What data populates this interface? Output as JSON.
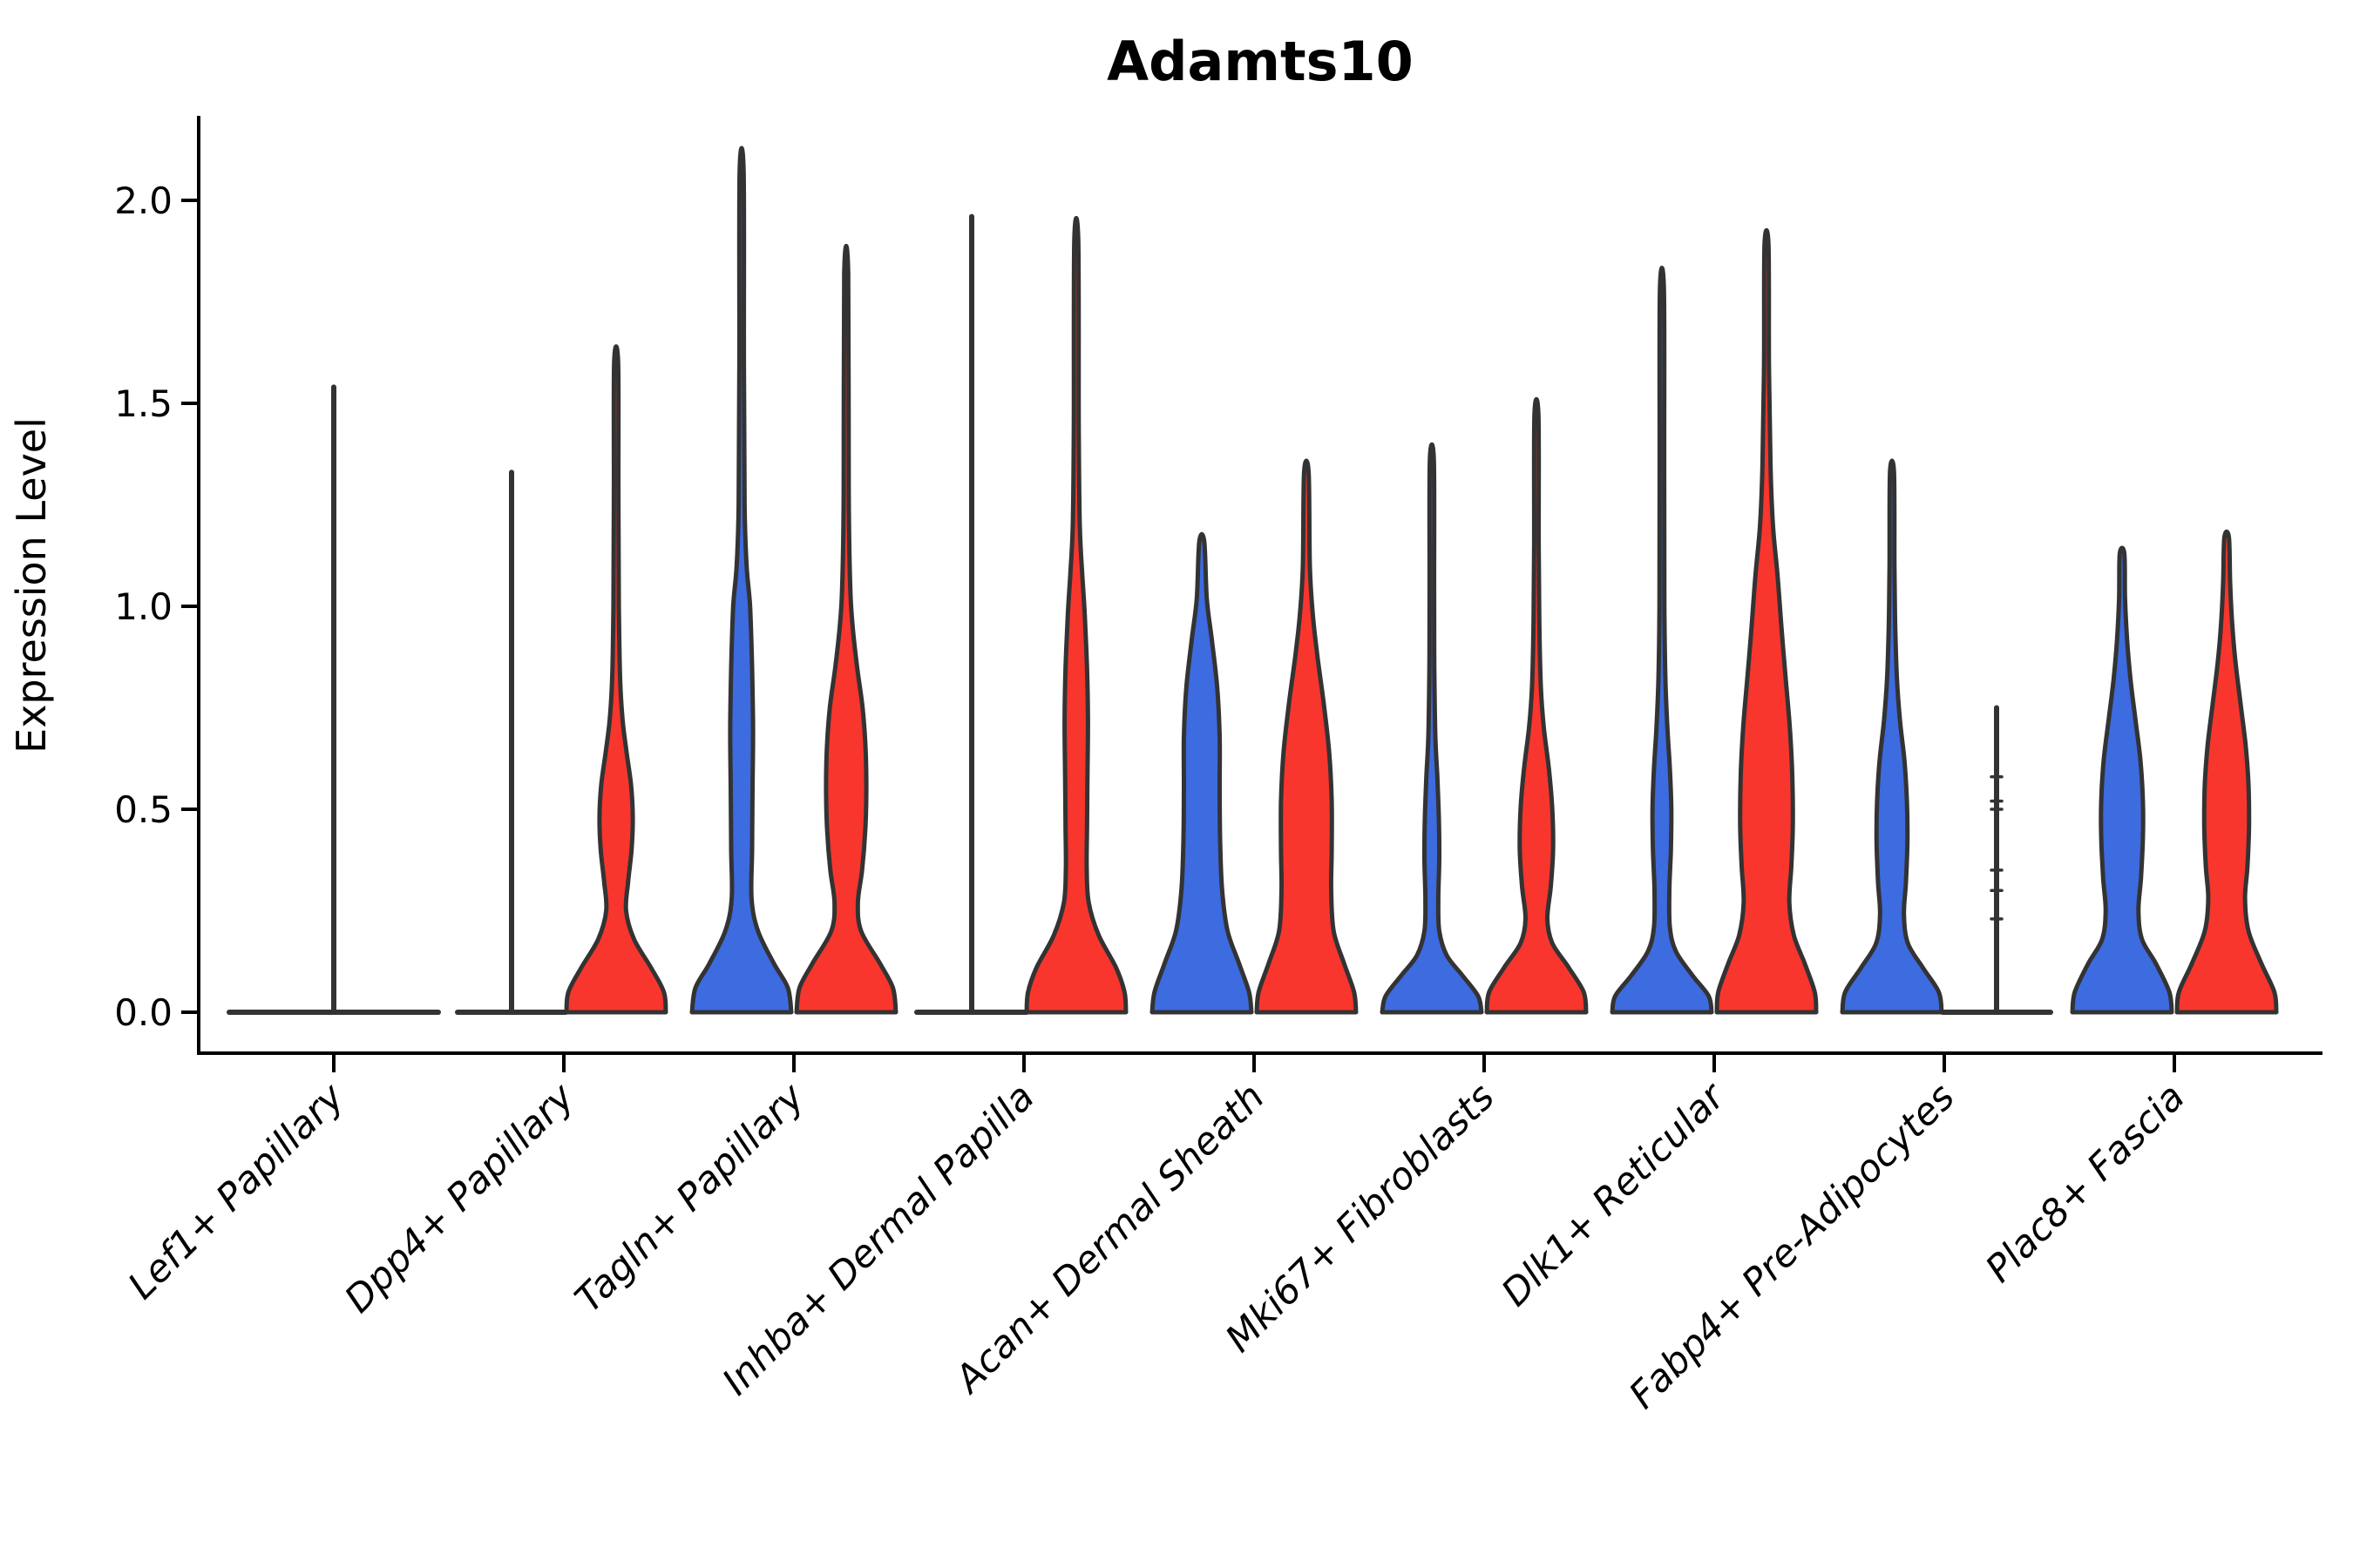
{
  "page": {
    "background": "#FFFFFF"
  },
  "title": "Adamts10",
  "chart_data": {
    "type": "violin",
    "title": "Adamts10",
    "xlabel": "",
    "ylabel": "Expression Level",
    "ylim": [
      -0.105,
      2.2
    ],
    "yticks": [
      0.0,
      0.5,
      1.0,
      1.5,
      2.0
    ],
    "ytick_labels": [
      "0.0",
      "0.5",
      "1.0",
      "1.5",
      "2.0"
    ],
    "grid": false,
    "legend": "none",
    "categories": [
      "Lef1+ Papillary",
      "Dpp4+ Papillary",
      "Tagln+ Papillary",
      "Inhba+ Dermal Papilla",
      "Acan+ Dermal Sheath",
      "Mki67+ Fibroblasts",
      "Dlk1+ Reticular",
      "Fabp4+ Pre-Adipocytes",
      "Plac8+ Fascia"
    ],
    "groups": [
      {
        "key": "blue",
        "fill": "#3D6BE0"
      },
      {
        "key": "red",
        "fill": "#F8362D"
      }
    ],
    "edge_color": "#333333",
    "axis_color": "#000000",
    "violins": [
      {
        "category_index": 0,
        "category": "Lef1+ Papillary",
        "group": null,
        "side": "center",
        "kind": "flat_spike",
        "flat_half": 120,
        "spike_top": 1.54,
        "points": []
      },
      {
        "category_index": 1,
        "category": "Dpp4+ Papillary",
        "group": "blue",
        "side": "left",
        "kind": "flat_spike",
        "flat_half": 62,
        "spike_top": 1.33,
        "points": []
      },
      {
        "category_index": 1,
        "category": "Dpp4+ Papillary",
        "group": "red",
        "side": "right",
        "kind": "kde",
        "max": 1.6,
        "profile": [
          [
            0,
            1.0
          ],
          [
            0.05,
            0.96
          ],
          [
            0.11,
            0.7
          ],
          [
            0.18,
            0.36
          ],
          [
            0.25,
            0.2
          ],
          [
            0.32,
            0.24
          ],
          [
            0.4,
            0.31
          ],
          [
            0.48,
            0.335
          ],
          [
            0.56,
            0.3
          ],
          [
            0.64,
            0.21
          ],
          [
            0.72,
            0.13
          ],
          [
            0.82,
            0.08
          ],
          [
            1.0,
            0.055
          ],
          [
            1.28,
            0.045
          ],
          [
            1.6,
            0.04
          ]
        ]
      },
      {
        "category_index": 2,
        "category": "Tagln+ Papillary",
        "group": "blue",
        "side": "left",
        "kind": "kde",
        "max": 2.07,
        "profile": [
          [
            0,
            1.0
          ],
          [
            0.06,
            0.93
          ],
          [
            0.12,
            0.65
          ],
          [
            0.2,
            0.33
          ],
          [
            0.28,
            0.2
          ],
          [
            0.4,
            0.21
          ],
          [
            0.55,
            0.22
          ],
          [
            0.7,
            0.23
          ],
          [
            0.85,
            0.21
          ],
          [
            1.0,
            0.17
          ],
          [
            1.1,
            0.1
          ],
          [
            1.25,
            0.06
          ],
          [
            1.6,
            0.045
          ],
          [
            2.07,
            0.04
          ]
        ]
      },
      {
        "category_index": 2,
        "category": "Tagln+ Papillary",
        "group": "red",
        "side": "right",
        "kind": "kde",
        "max": 1.82,
        "profile": [
          [
            0,
            1.0
          ],
          [
            0.06,
            0.94
          ],
          [
            0.12,
            0.68
          ],
          [
            0.2,
            0.3
          ],
          [
            0.27,
            0.235
          ],
          [
            0.35,
            0.32
          ],
          [
            0.45,
            0.385
          ],
          [
            0.55,
            0.405
          ],
          [
            0.65,
            0.39
          ],
          [
            0.75,
            0.33
          ],
          [
            0.85,
            0.22
          ],
          [
            0.95,
            0.13
          ],
          [
            1.05,
            0.08
          ],
          [
            1.28,
            0.05
          ],
          [
            1.82,
            0.04
          ]
        ]
      },
      {
        "category_index": 3,
        "category": "Inhba+ Dermal Papilla",
        "group": "blue",
        "side": "left",
        "kind": "flat_spike",
        "flat_half": 63,
        "spike_top": 1.96,
        "points": []
      },
      {
        "category_index": 3,
        "category": "Inhba+ Dermal Papilla",
        "group": "red",
        "side": "right",
        "kind": "kde",
        "max": 1.9,
        "profile": [
          [
            0,
            1.0
          ],
          [
            0.05,
            0.97
          ],
          [
            0.11,
            0.8
          ],
          [
            0.19,
            0.45
          ],
          [
            0.27,
            0.25
          ],
          [
            0.35,
            0.21
          ],
          [
            0.45,
            0.215
          ],
          [
            0.58,
            0.225
          ],
          [
            0.72,
            0.235
          ],
          [
            0.85,
            0.215
          ],
          [
            0.98,
            0.17
          ],
          [
            1.08,
            0.12
          ],
          [
            1.2,
            0.07
          ],
          [
            1.45,
            0.05
          ],
          [
            1.9,
            0.04
          ]
        ]
      },
      {
        "category_index": 4,
        "category": "Acan+ Dermal Sheath",
        "group": "blue",
        "side": "left",
        "kind": "kde",
        "max": 1.16,
        "profile": [
          [
            0,
            1.0
          ],
          [
            0.05,
            0.95
          ],
          [
            0.12,
            0.75
          ],
          [
            0.2,
            0.52
          ],
          [
            0.3,
            0.41
          ],
          [
            0.42,
            0.37
          ],
          [
            0.55,
            0.36
          ],
          [
            0.68,
            0.36
          ],
          [
            0.8,
            0.31
          ],
          [
            0.92,
            0.2
          ],
          [
            1.02,
            0.1
          ],
          [
            1.16,
            0.05
          ]
        ]
      },
      {
        "category_index": 4,
        "category": "Acan+ Dermal Sheath",
        "group": "red",
        "side": "right",
        "kind": "kde",
        "max": 1.33,
        "profile": [
          [
            0,
            1.0
          ],
          [
            0.05,
            0.96
          ],
          [
            0.12,
            0.76
          ],
          [
            0.2,
            0.55
          ],
          [
            0.3,
            0.5
          ],
          [
            0.4,
            0.51
          ],
          [
            0.52,
            0.51
          ],
          [
            0.64,
            0.46
          ],
          [
            0.76,
            0.35
          ],
          [
            0.88,
            0.22
          ],
          [
            0.98,
            0.13
          ],
          [
            1.1,
            0.07
          ],
          [
            1.33,
            0.045
          ]
        ]
      },
      {
        "category_index": 5,
        "category": "Mki67+ Fibroblasts",
        "group": "blue",
        "side": "left",
        "kind": "kde",
        "max": 1.36,
        "profile": [
          [
            0,
            1.0
          ],
          [
            0.04,
            0.93
          ],
          [
            0.09,
            0.62
          ],
          [
            0.14,
            0.3
          ],
          [
            0.2,
            0.15
          ],
          [
            0.28,
            0.13
          ],
          [
            0.38,
            0.15
          ],
          [
            0.48,
            0.14
          ],
          [
            0.58,
            0.11
          ],
          [
            0.68,
            0.07
          ],
          [
            0.85,
            0.05
          ],
          [
            1.05,
            0.045
          ],
          [
            1.36,
            0.04
          ]
        ]
      },
      {
        "category_index": 5,
        "category": "Mki67+ Fibroblasts",
        "group": "red",
        "side": "right",
        "kind": "kde",
        "max": 1.47,
        "profile": [
          [
            0,
            1.0
          ],
          [
            0.05,
            0.95
          ],
          [
            0.11,
            0.65
          ],
          [
            0.17,
            0.32
          ],
          [
            0.23,
            0.22
          ],
          [
            0.31,
            0.29
          ],
          [
            0.4,
            0.335
          ],
          [
            0.5,
            0.32
          ],
          [
            0.6,
            0.25
          ],
          [
            0.7,
            0.15
          ],
          [
            0.8,
            0.09
          ],
          [
            0.95,
            0.06
          ],
          [
            1.15,
            0.045
          ],
          [
            1.47,
            0.04
          ]
        ]
      },
      {
        "category_index": 6,
        "category": "Dlk1+ Reticular",
        "group": "blue",
        "side": "left",
        "kind": "kde",
        "max": 1.78,
        "profile": [
          [
            0,
            1.0
          ],
          [
            0.04,
            0.94
          ],
          [
            0.09,
            0.62
          ],
          [
            0.15,
            0.28
          ],
          [
            0.21,
            0.16
          ],
          [
            0.3,
            0.15
          ],
          [
            0.4,
            0.18
          ],
          [
            0.5,
            0.19
          ],
          [
            0.6,
            0.16
          ],
          [
            0.7,
            0.11
          ],
          [
            0.82,
            0.07
          ],
          [
            1.0,
            0.05
          ],
          [
            1.35,
            0.045
          ],
          [
            1.78,
            0.04
          ]
        ]
      },
      {
        "category_index": 6,
        "category": "Dlk1+ Reticular",
        "group": "red",
        "side": "right",
        "kind": "kde",
        "max": 1.89,
        "profile": [
          [
            0,
            1.0
          ],
          [
            0.05,
            0.97
          ],
          [
            0.12,
            0.77
          ],
          [
            0.19,
            0.55
          ],
          [
            0.27,
            0.46
          ],
          [
            0.36,
            0.5
          ],
          [
            0.46,
            0.53
          ],
          [
            0.58,
            0.52
          ],
          [
            0.7,
            0.47
          ],
          [
            0.83,
            0.38
          ],
          [
            0.95,
            0.3
          ],
          [
            1.08,
            0.22
          ],
          [
            1.2,
            0.13
          ],
          [
            1.35,
            0.08
          ],
          [
            1.6,
            0.05
          ],
          [
            1.89,
            0.04
          ]
        ]
      },
      {
        "category_index": 7,
        "category": "Fabp4+ Pre-Adipocytes",
        "group": "blue",
        "side": "left",
        "kind": "kde",
        "max": 1.33,
        "profile": [
          [
            0,
            1.0
          ],
          [
            0.05,
            0.94
          ],
          [
            0.11,
            0.62
          ],
          [
            0.17,
            0.32
          ],
          [
            0.24,
            0.24
          ],
          [
            0.32,
            0.28
          ],
          [
            0.42,
            0.31
          ],
          [
            0.52,
            0.3
          ],
          [
            0.62,
            0.25
          ],
          [
            0.72,
            0.16
          ],
          [
            0.82,
            0.1
          ],
          [
            0.95,
            0.065
          ],
          [
            1.1,
            0.05
          ],
          [
            1.33,
            0.04
          ]
        ]
      },
      {
        "category_index": 7,
        "category": "Fabp4+ Pre-Adipocytes",
        "group": "red",
        "side": "right",
        "kind": "flat_spike",
        "flat_half": 62,
        "spike_top": 0.75,
        "points": [
          0.58,
          0.52,
          0.5,
          0.35,
          0.3,
          0.23
        ]
      },
      {
        "category_index": 8,
        "category": "Plac8+ Fascia",
        "group": "blue",
        "side": "left",
        "kind": "kde",
        "max": 1.13,
        "profile": [
          [
            0,
            1.0
          ],
          [
            0.05,
            0.95
          ],
          [
            0.12,
            0.68
          ],
          [
            0.18,
            0.4
          ],
          [
            0.25,
            0.33
          ],
          [
            0.33,
            0.38
          ],
          [
            0.43,
            0.42
          ],
          [
            0.52,
            0.42
          ],
          [
            0.62,
            0.37
          ],
          [
            0.72,
            0.27
          ],
          [
            0.82,
            0.17
          ],
          [
            0.92,
            0.1
          ],
          [
            1.02,
            0.06
          ],
          [
            1.13,
            0.045
          ]
        ]
      },
      {
        "category_index": 8,
        "category": "Plac8+ Fascia",
        "group": "red",
        "side": "right",
        "kind": "kde",
        "max": 1.17,
        "profile": [
          [
            0,
            1.0
          ],
          [
            0.05,
            0.96
          ],
          [
            0.12,
            0.7
          ],
          [
            0.2,
            0.44
          ],
          [
            0.28,
            0.37
          ],
          [
            0.36,
            0.42
          ],
          [
            0.46,
            0.45
          ],
          [
            0.56,
            0.44
          ],
          [
            0.66,
            0.38
          ],
          [
            0.76,
            0.28
          ],
          [
            0.86,
            0.18
          ],
          [
            0.96,
            0.11
          ],
          [
            1.06,
            0.07
          ],
          [
            1.17,
            0.045
          ]
        ]
      }
    ]
  }
}
